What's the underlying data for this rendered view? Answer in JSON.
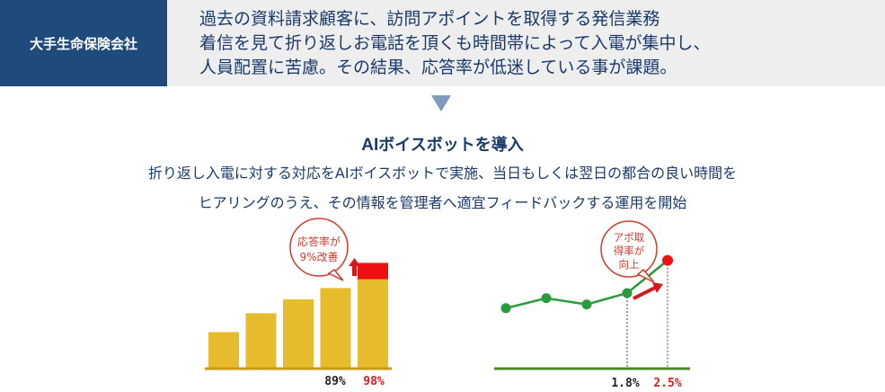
{
  "header": {
    "company": "大手生命保険会社",
    "problem_lines": [
      "過去の資料請求顧客に、訪問アポイントを取得する発信業務",
      "着信を見て折り返しお電話を頂くも時間帯によって入電が集中し、",
      "人員配置に苦慮。その結果、応答率が低迷している事が課題。"
    ]
  },
  "solution": {
    "title_ai": "AI",
    "title_rest": "ボイスボットを導入",
    "lines": [
      "折り返し入電に対する対応をAIボイスボットで実施、当日もしくは翌日の都合の良い時間を",
      "ヒアリングのうえ、その情報を管理者へ適宜フィードバックする運用を開始"
    ]
  },
  "chart_data": [
    {
      "type": "bar",
      "values": [
        0.29,
        0.44,
        0.55,
        0.64,
        0.71
      ],
      "improvement_segment": 0.13,
      "before_label": "89%",
      "after_label": "98%",
      "callout": [
        "応答率が",
        "9%改善"
      ],
      "colors": {
        "bar": "#e6bb2c",
        "highlight": "#ee1111",
        "axis": "#c99a1a"
      }
    },
    {
      "type": "line",
      "values": [
        0.48,
        0.56,
        0.51,
        0.6,
        0.86
      ],
      "before_label": "1.8%",
      "after_label": "2.5%",
      "callout": [
        "アポ取",
        "得率が",
        "向上"
      ],
      "colors": {
        "line": "#2a9a3c",
        "highlight": "#ee1111",
        "axis": "#4a8a2a"
      }
    }
  ]
}
